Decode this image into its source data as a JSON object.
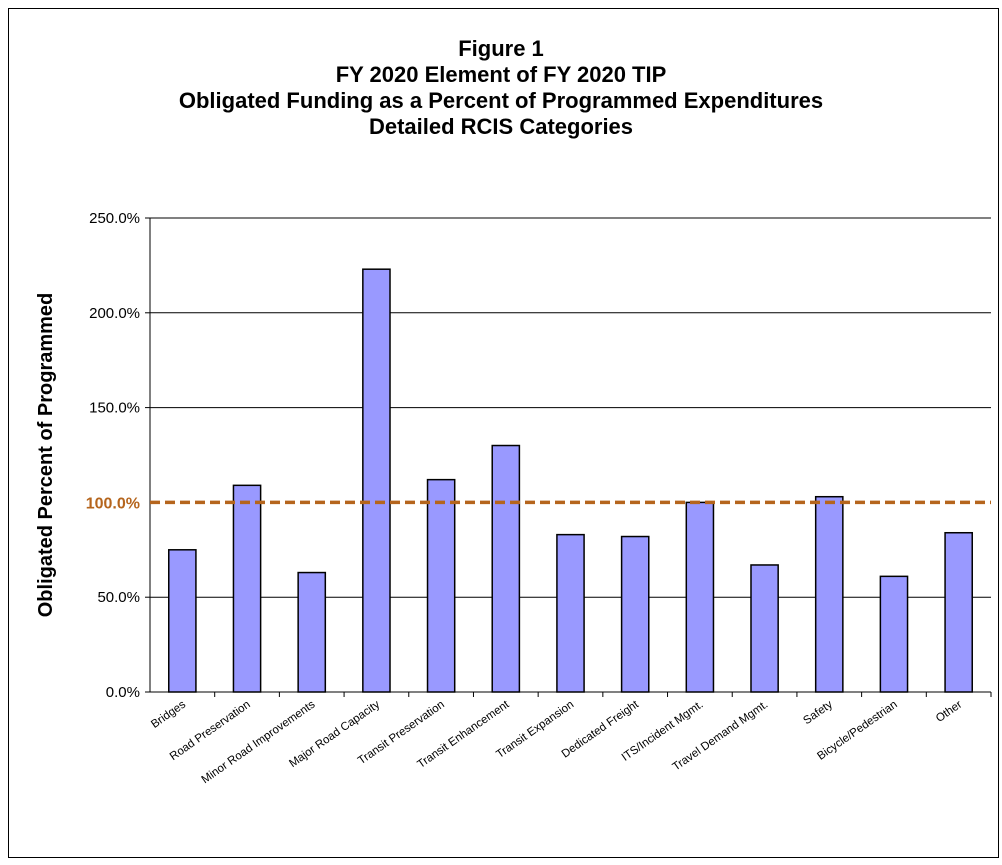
{
  "chart_data": {
    "type": "bar",
    "title_lines": [
      "Figure 1",
      "FY 2020 Element of FY 2020 TIP",
      "Obligated Funding as a Percent of Programmed Expenditures",
      "Detailed RCIS Categories"
    ],
    "ylabel": "Obligated Percent of Programmed",
    "xlabel": "",
    "ylim": [
      0,
      250
    ],
    "yticks": [
      {
        "value": 0,
        "label": "0.0%"
      },
      {
        "value": 50,
        "label": "50.0%"
      },
      {
        "value": 150,
        "label": "150.0%"
      },
      {
        "value": 200,
        "label": "200.0%"
      },
      {
        "value": 250,
        "label": "250.0%"
      }
    ],
    "reference_line": {
      "value": 100,
      "label": "100.0%",
      "color": "#b5651d",
      "style": "dashed"
    },
    "grid": true,
    "bar_color": "#9999ff",
    "categories": [
      "Bridges",
      "Road Preservation",
      "Minor Road Improvements",
      "Major Road Capacity",
      "Transit Preservation",
      "Transit Enhancement",
      "Transit Expansion",
      "Dedicated Freight",
      "ITS/Incident Mgmt.",
      "Travel Demand Mgmt.",
      "Safety",
      "Bicycle/Pedestrian",
      "Other"
    ],
    "values": [
      75,
      109,
      63,
      223,
      112,
      130,
      83,
      82,
      100,
      67,
      103,
      61,
      84
    ]
  }
}
